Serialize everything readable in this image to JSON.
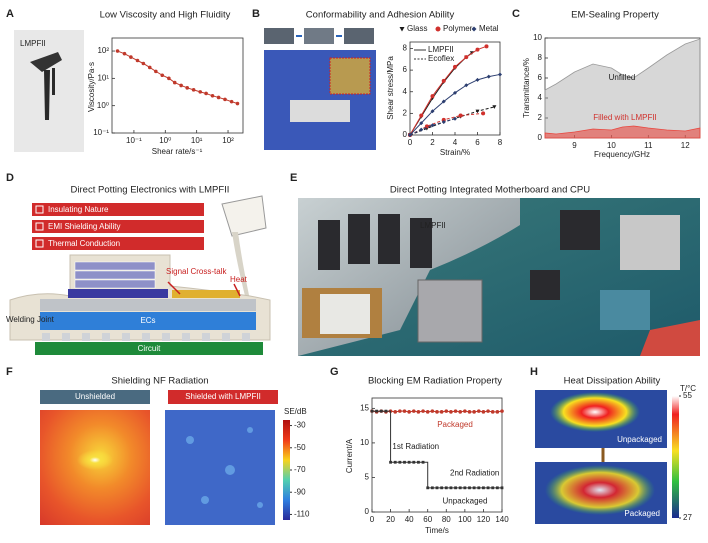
{
  "chart_data": [
    {
      "panel": "A",
      "type": "line",
      "title": "Low Viscosity and High Fluidity",
      "image_label": "LMPFII",
      "x_label": "Shear rate/s⁻¹",
      "y_label": "Viscosity/Pa·s",
      "log_x": true,
      "log_y": true,
      "xlim": [
        0.02,
        300
      ],
      "ylim": [
        0.1,
        300
      ],
      "xticks": [
        {
          "value": 0.1,
          "label": "10⁻¹"
        },
        {
          "value": 1,
          "label": "10⁰"
        },
        {
          "value": 10,
          "label": "10¹"
        },
        {
          "value": 100,
          "label": "10²"
        }
      ],
      "yticks": [
        {
          "value": 0.1,
          "label": "10⁻¹"
        },
        {
          "value": 1,
          "label": "10⁰"
        },
        {
          "value": 10,
          "label": "10¹"
        },
        {
          "value": 100,
          "label": "10²"
        }
      ],
      "series": [
        {
          "color": "#c0392b",
          "marker": "circle",
          "x": [
            0.03,
            0.05,
            0.08,
            0.13,
            0.2,
            0.32,
            0.5,
            0.8,
            1.3,
            2,
            3.2,
            5,
            8,
            13,
            20,
            32,
            50,
            80,
            130,
            200
          ],
          "values": [
            100,
            80,
            60,
            45,
            35,
            25,
            18,
            13,
            10,
            7,
            5.5,
            4.5,
            3.8,
            3.2,
            2.8,
            2.3,
            2,
            1.7,
            1.4,
            1.2
          ]
        }
      ]
    },
    {
      "panel": "B",
      "type": "line",
      "title": "Conformability and Adhesion Ability",
      "x_label": "Strain/%",
      "y_label": "Shear stress/MPa",
      "xlim": [
        0,
        8
      ],
      "ylim": [
        0,
        8.6
      ],
      "xticks": [
        0,
        2,
        4,
        6,
        8
      ],
      "yticks": [
        0,
        2,
        4,
        6,
        8
      ],
      "line_styles": {
        "lmp": "LMPFII",
        "ecoflex": "Ecoflex"
      },
      "materials": [
        {
          "name": "Glass",
          "color": "#1a1a1a",
          "marker": "triangle-down",
          "lmp_x": [
            0,
            1,
            2,
            3,
            4,
            5,
            5.5
          ],
          "lmp_values": [
            0,
            1.7,
            3.4,
            4.9,
            6.2,
            7.2,
            7.6
          ],
          "ecoflex_x": [
            0,
            1.5,
            3,
            4.5,
            6,
            7.5
          ],
          "ecoflex_values": [
            0,
            0.6,
            1.2,
            1.7,
            2.2,
            2.6
          ]
        },
        {
          "name": "Polymer",
          "color": "#d0312d",
          "marker": "circle",
          "lmp_x": [
            0,
            1,
            2,
            3,
            4,
            5,
            6,
            6.8
          ],
          "lmp_values": [
            0,
            1.8,
            3.6,
            5,
            6.3,
            7.2,
            7.9,
            8.2
          ],
          "ecoflex_x": [
            0,
            1.5,
            3,
            4.5,
            6.5
          ],
          "ecoflex_values": [
            0,
            0.8,
            1.4,
            1.8,
            2
          ]
        },
        {
          "name": "Metal",
          "color": "#2c3e70",
          "marker": "diamond",
          "lmp_x": [
            0,
            1,
            2,
            3,
            4,
            5,
            6,
            7,
            8
          ],
          "lmp_values": [
            0,
            1.1,
            2.2,
            3.1,
            3.9,
            4.6,
            5.1,
            5.4,
            5.6
          ],
          "ecoflex_x": [
            0,
            1,
            2,
            3,
            4
          ],
          "ecoflex_values": [
            0,
            0.5,
            0.9,
            1.2,
            1.5
          ]
        }
      ]
    },
    {
      "panel": "C",
      "type": "area",
      "title": "EM-Sealing Property",
      "x_label": "Frequency/GHz",
      "y_label": "Transmittance/%",
      "xlim": [
        8.2,
        12.4
      ],
      "ylim": [
        0,
        10
      ],
      "xticks": [
        9,
        10,
        11,
        12
      ],
      "yticks": [
        0,
        2,
        4,
        6,
        8,
        10
      ],
      "x": [
        8.2,
        8.5,
        9,
        9.5,
        10,
        10.3,
        10.6,
        11,
        11.5,
        12,
        12.4
      ],
      "series": [
        {
          "name": "Unfilled",
          "color": "#9a9a9a",
          "values": [
            4.8,
            5.4,
            6.6,
            7.4,
            7,
            6.3,
            6,
            7,
            8.3,
            9.4,
            9.9
          ]
        },
        {
          "name": "Filled with LMPFII",
          "color": "#e8473f",
          "values": [
            0.5,
            0.4,
            0.6,
            0.9,
            0.8,
            1.1,
            1.2,
            1,
            0.8,
            0.7,
            1
          ]
        }
      ]
    },
    {
      "panel": "G",
      "type": "line",
      "title": "Blocking EM Radiation Property",
      "x_label": "Time/s",
      "y_label": "Current/A",
      "xlim": [
        0,
        140
      ],
      "ylim": [
        0,
        16.5
      ],
      "xticks": [
        0,
        20,
        40,
        60,
        80,
        100,
        120,
        140
      ],
      "yticks": [
        0,
        5,
        10,
        15
      ],
      "x": [
        0,
        5,
        10,
        15,
        20,
        25,
        30,
        35,
        40,
        45,
        50,
        55,
        60,
        65,
        70,
        75,
        80,
        85,
        90,
        95,
        100,
        105,
        110,
        115,
        120,
        125,
        130,
        135,
        140
      ],
      "series": [
        {
          "name": "Packaged",
          "color": "#c0392b",
          "values": [
            14.6,
            14.5,
            14.6,
            14.5,
            14.6,
            14.5,
            14.6,
            14.6,
            14.5,
            14.6,
            14.5,
            14.6,
            14.5,
            14.6,
            14.5,
            14.5,
            14.6,
            14.5,
            14.6,
            14.5,
            14.6,
            14.5,
            14.5,
            14.6,
            14.5,
            14.6,
            14.5,
            14.5,
            14.6
          ]
        },
        {
          "name": "Unpackaged",
          "color": "#333333",
          "step": true,
          "values": [
            14.6,
            14.6,
            14.6,
            14.6,
            7.2,
            7.2,
            7.2,
            7.2,
            7.2,
            7.2,
            7.2,
            7.2,
            3.5,
            3.5,
            3.5,
            3.5,
            3.5,
            3.5,
            3.5,
            3.5,
            3.5,
            3.5,
            3.5,
            3.5,
            3.5,
            3.5,
            3.5,
            3.5,
            3.5
          ]
        }
      ],
      "annotations": [
        "1st Radiation",
        "2nd Radiation"
      ]
    }
  ],
  "figure": {
    "D": {
      "panel": "D",
      "title": "Direct Potting Electronics with LMPFII",
      "features": [
        "Insulating Nature",
        "EMI Shielding Ability",
        "Thermal Conduction"
      ],
      "labels": {
        "signal": "Signal Cross-talk",
        "heat": "Heat",
        "joint": "Welding Joint",
        "ecs": "ECs",
        "circuit": "Circuit"
      }
    },
    "E": {
      "panel": "E",
      "title": "Direct Potting Integrated Motherboard and CPU",
      "label": "LMPFII"
    },
    "F": {
      "panel": "F",
      "title": "Shielding NF Radiation",
      "tabs": [
        "Unshielded",
        "Shielded with LMPFII"
      ],
      "colorbar": {
        "label": "SE/dB",
        "lim": [
          -115,
          -25
        ],
        "ticks": [
          -30,
          -50,
          -70,
          -90,
          -110
        ]
      }
    },
    "H": {
      "panel": "H",
      "title": "Heat Dissipation Ability",
      "labels": [
        "Unpackaged",
        "Packaged"
      ],
      "colorbar": {
        "label": "T/°C",
        "lim": [
          27,
          55
        ],
        "ticks": [
          55,
          27
        ]
      }
    }
  }
}
